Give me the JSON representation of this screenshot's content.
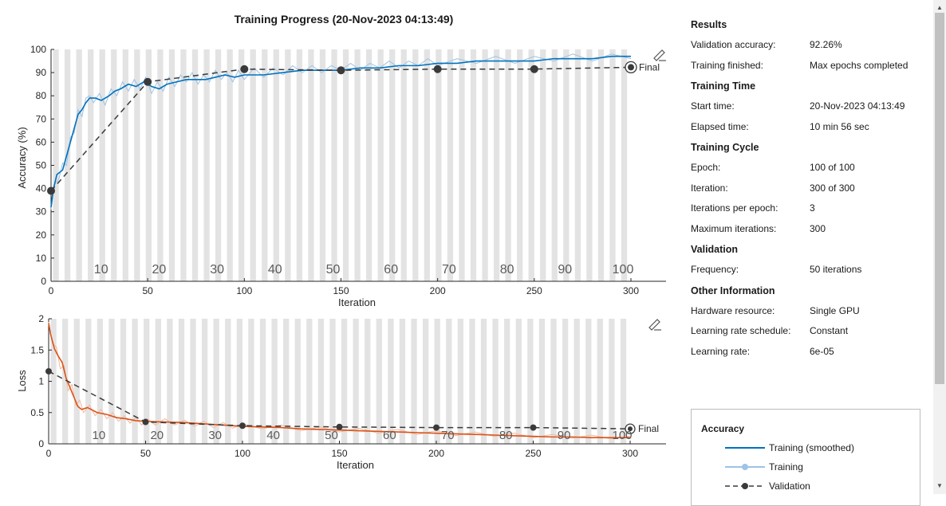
{
  "title": "Training Progress (20-Nov-2023 04:13:49)",
  "colors": {
    "accuracy_smoothed": "#0072BD",
    "accuracy_raw": "#9DC3E6",
    "loss_smoothed": "#D95319",
    "loss_raw": "#F2B89A",
    "validation": "#3a3a3a",
    "epoch_band": "#e3e3e3"
  },
  "chart_data": [
    {
      "type": "line",
      "ylabel": "Accuracy (%)",
      "xlabel": "Iteration",
      "xlim": [
        0,
        300
      ],
      "ylim": [
        0,
        100
      ],
      "xticks": [
        0,
        50,
        100,
        150,
        200,
        250,
        300
      ],
      "yticks": [
        0,
        10,
        20,
        30,
        40,
        50,
        60,
        70,
        80,
        90,
        100
      ],
      "epoch_labels": [
        "10",
        "20",
        "30",
        "40",
        "50",
        "60",
        "70",
        "80",
        "90",
        "100"
      ],
      "final_label": "Final",
      "smoothed_points": [
        [
          0,
          32
        ],
        [
          1,
          39
        ],
        [
          3,
          46
        ],
        [
          6,
          48
        ],
        [
          8,
          54
        ],
        [
          10,
          60
        ],
        [
          12,
          66
        ],
        [
          14,
          72
        ],
        [
          16,
          74
        ],
        [
          18,
          77
        ],
        [
          20,
          79
        ],
        [
          23,
          79
        ],
        [
          26,
          78
        ],
        [
          30,
          80
        ],
        [
          33,
          82
        ],
        [
          36,
          83
        ],
        [
          40,
          85
        ],
        [
          44,
          84
        ],
        [
          48,
          86
        ],
        [
          52,
          84
        ],
        [
          56,
          83
        ],
        [
          60,
          85
        ],
        [
          65,
          86
        ],
        [
          70,
          87
        ],
        [
          75,
          87
        ],
        [
          80,
          87
        ],
        [
          85,
          88
        ],
        [
          90,
          89
        ],
        [
          95,
          88
        ],
        [
          100,
          89
        ],
        [
          110,
          89
        ],
        [
          120,
          90
        ],
        [
          130,
          91
        ],
        [
          140,
          91
        ],
        [
          150,
          91
        ],
        [
          160,
          92
        ],
        [
          170,
          92
        ],
        [
          180,
          93
        ],
        [
          190,
          93
        ],
        [
          200,
          94
        ],
        [
          210,
          94
        ],
        [
          220,
          95
        ],
        [
          230,
          95
        ],
        [
          240,
          95
        ],
        [
          250,
          95
        ],
        [
          260,
          96
        ],
        [
          270,
          96
        ],
        [
          280,
          96
        ],
        [
          290,
          97
        ],
        [
          300,
          97
        ]
      ],
      "raw_points": [
        [
          0,
          31
        ],
        [
          2,
          42
        ],
        [
          4,
          44
        ],
        [
          6,
          51
        ],
        [
          8,
          50
        ],
        [
          10,
          62
        ],
        [
          12,
          64
        ],
        [
          14,
          74
        ],
        [
          16,
          71
        ],
        [
          18,
          79
        ],
        [
          20,
          80
        ],
        [
          22,
          77
        ],
        [
          25,
          81
        ],
        [
          28,
          76
        ],
        [
          31,
          83
        ],
        [
          34,
          80
        ],
        [
          37,
          86
        ],
        [
          40,
          82
        ],
        [
          43,
          87
        ],
        [
          46,
          83
        ],
        [
          49,
          88
        ],
        [
          52,
          81
        ],
        [
          55,
          86
        ],
        [
          58,
          82
        ],
        [
          61,
          88
        ],
        [
          64,
          84
        ],
        [
          67,
          89
        ],
        [
          70,
          86
        ],
        [
          73,
          90
        ],
        [
          76,
          85
        ],
        [
          79,
          89
        ],
        [
          82,
          86
        ],
        [
          85,
          91
        ],
        [
          88,
          87
        ],
        [
          91,
          90
        ],
        [
          94,
          86
        ],
        [
          97,
          91
        ],
        [
          100,
          87
        ],
        [
          105,
          92
        ],
        [
          110,
          88
        ],
        [
          115,
          92
        ],
        [
          120,
          89
        ],
        [
          125,
          93
        ],
        [
          130,
          90
        ],
        [
          135,
          93
        ],
        [
          140,
          90
        ],
        [
          145,
          93
        ],
        [
          150,
          91
        ],
        [
          155,
          94
        ],
        [
          160,
          91
        ],
        [
          165,
          94
        ],
        [
          170,
          92
        ],
        [
          175,
          95
        ],
        [
          180,
          92
        ],
        [
          185,
          95
        ],
        [
          190,
          93
        ],
        [
          195,
          96
        ],
        [
          200,
          93
        ],
        [
          210,
          96
        ],
        [
          220,
          94
        ],
        [
          230,
          97
        ],
        [
          240,
          94
        ],
        [
          250,
          97
        ],
        [
          260,
          95
        ],
        [
          270,
          98
        ],
        [
          280,
          95
        ],
        [
          290,
          98
        ],
        [
          300,
          96
        ]
      ],
      "validation_points": [
        [
          0,
          39
        ],
        [
          50,
          86
        ],
        [
          100,
          91.5
        ],
        [
          150,
          91
        ],
        [
          200,
          91.5
        ],
        [
          250,
          91.5
        ],
        [
          300,
          92.3
        ]
      ]
    },
    {
      "type": "line",
      "ylabel": "Loss",
      "xlabel": "Iteration",
      "xlim": [
        0,
        300
      ],
      "ylim": [
        0,
        2
      ],
      "xticks": [
        0,
        50,
        100,
        150,
        200,
        250,
        300
      ],
      "yticks": [
        0,
        0.5,
        1,
        1.5,
        2
      ],
      "ytick_labels": [
        "0",
        "0.5",
        "1",
        "1.5",
        "2"
      ],
      "epoch_labels": [
        "10",
        "20",
        "30",
        "40",
        "50",
        "60",
        "70",
        "80",
        "90",
        "100"
      ],
      "final_label": "Final",
      "smoothed_points": [
        [
          0,
          1.93
        ],
        [
          1,
          1.75
        ],
        [
          3,
          1.52
        ],
        [
          5,
          1.4
        ],
        [
          7,
          1.3
        ],
        [
          9,
          1.05
        ],
        [
          11,
          0.9
        ],
        [
          13,
          0.75
        ],
        [
          15,
          0.6
        ],
        [
          17,
          0.55
        ],
        [
          20,
          0.58
        ],
        [
          25,
          0.5
        ],
        [
          30,
          0.47
        ],
        [
          35,
          0.42
        ],
        [
          40,
          0.4
        ],
        [
          45,
          0.37
        ],
        [
          50,
          0.36
        ],
        [
          60,
          0.35
        ],
        [
          70,
          0.34
        ],
        [
          80,
          0.32
        ],
        [
          90,
          0.3
        ],
        [
          100,
          0.28
        ],
        [
          110,
          0.27
        ],
        [
          120,
          0.26
        ],
        [
          130,
          0.24
        ],
        [
          140,
          0.23
        ],
        [
          150,
          0.22
        ],
        [
          160,
          0.21
        ],
        [
          170,
          0.2
        ],
        [
          180,
          0.19
        ],
        [
          190,
          0.18
        ],
        [
          200,
          0.17
        ],
        [
          210,
          0.16
        ],
        [
          220,
          0.15
        ],
        [
          230,
          0.14
        ],
        [
          240,
          0.13
        ],
        [
          250,
          0.12
        ],
        [
          260,
          0.11
        ],
        [
          270,
          0.11
        ],
        [
          280,
          0.1
        ],
        [
          290,
          0.1
        ],
        [
          300,
          0.1
        ]
      ],
      "raw_points": [
        [
          0,
          1.95
        ],
        [
          2,
          1.6
        ],
        [
          4,
          1.55
        ],
        [
          6,
          1.2
        ],
        [
          8,
          1.25
        ],
        [
          10,
          0.85
        ],
        [
          12,
          0.95
        ],
        [
          14,
          0.62
        ],
        [
          16,
          0.7
        ],
        [
          18,
          0.5
        ],
        [
          21,
          0.62
        ],
        [
          24,
          0.45
        ],
        [
          27,
          0.55
        ],
        [
          30,
          0.4
        ],
        [
          33,
          0.5
        ],
        [
          36,
          0.36
        ],
        [
          39,
          0.45
        ],
        [
          42,
          0.33
        ],
        [
          45,
          0.42
        ],
        [
          48,
          0.3
        ],
        [
          51,
          0.4
        ],
        [
          55,
          0.3
        ],
        [
          60,
          0.4
        ],
        [
          65,
          0.3
        ],
        [
          70,
          0.38
        ],
        [
          75,
          0.28
        ],
        [
          80,
          0.36
        ],
        [
          85,
          0.26
        ],
        [
          90,
          0.34
        ],
        [
          95,
          0.25
        ],
        [
          100,
          0.32
        ],
        [
          110,
          0.24
        ],
        [
          120,
          0.3
        ],
        [
          130,
          0.21
        ],
        [
          140,
          0.27
        ],
        [
          150,
          0.19
        ],
        [
          160,
          0.25
        ],
        [
          170,
          0.17
        ],
        [
          180,
          0.23
        ],
        [
          190,
          0.15
        ],
        [
          200,
          0.21
        ],
        [
          210,
          0.13
        ],
        [
          220,
          0.19
        ],
        [
          230,
          0.12
        ],
        [
          240,
          0.17
        ],
        [
          250,
          0.1
        ],
        [
          260,
          0.15
        ],
        [
          270,
          0.09
        ],
        [
          280,
          0.14
        ],
        [
          290,
          0.08
        ],
        [
          300,
          0.12
        ]
      ],
      "validation_points": [
        [
          0,
          1.16
        ],
        [
          50,
          0.35
        ],
        [
          100,
          0.29
        ],
        [
          150,
          0.27
        ],
        [
          200,
          0.26
        ],
        [
          250,
          0.26
        ],
        [
          300,
          0.24
        ]
      ]
    }
  ],
  "info_sections": [
    {
      "title": "Results",
      "rows": [
        {
          "label": "Validation accuracy:",
          "value": "92.26%"
        },
        {
          "label": "Training finished:",
          "value": "Max epochs completed"
        }
      ]
    },
    {
      "title": "Training Time",
      "rows": [
        {
          "label": "Start time:",
          "value": "20-Nov-2023 04:13:49"
        },
        {
          "label": "Elapsed time:",
          "value": "10 min 56 sec"
        }
      ]
    },
    {
      "title": "Training Cycle",
      "rows": [
        {
          "label": "Epoch:",
          "value": "100 of 100"
        },
        {
          "label": "Iteration:",
          "value": "300 of 300"
        },
        {
          "label": "Iterations per epoch:",
          "value": "3"
        },
        {
          "label": "Maximum iterations:",
          "value": "300"
        }
      ]
    },
    {
      "title": "Validation",
      "rows": [
        {
          "label": "Frequency:",
          "value": "50 iterations"
        }
      ]
    },
    {
      "title": "Other Information",
      "rows": [
        {
          "label": "Hardware resource:",
          "value": "Single GPU"
        },
        {
          "label": "Learning rate schedule:",
          "value": "Constant"
        },
        {
          "label": "Learning rate:",
          "value": "6e-05"
        }
      ]
    }
  ],
  "legend": {
    "title": "Accuracy",
    "items": [
      {
        "label": "Training (smoothed)",
        "style": "solid"
      },
      {
        "label": "Training",
        "style": "raw-dot"
      },
      {
        "label": "Validation",
        "style": "dashed-dot"
      }
    ]
  },
  "toolbar_icons": [
    "axes-toolbar-icon",
    "axes-toolbar-icon"
  ],
  "scrollbar": {
    "up_arrow": "▲",
    "down_arrow": "▼"
  }
}
